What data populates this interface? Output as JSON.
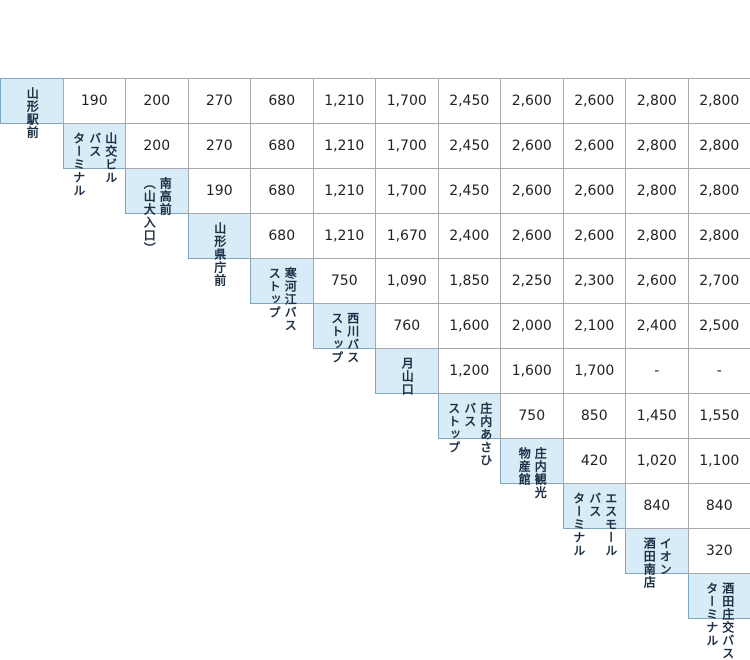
{
  "stops": [
    {
      "label": "山形駅前"
    },
    {
      "label": "山交ビル\nバス\nターミナル"
    },
    {
      "label": "南高前\n（山大入口）"
    },
    {
      "label": "山形県庁前"
    },
    {
      "label": "寒河江バス\nストップ"
    },
    {
      "label": "西川バス\nストップ"
    },
    {
      "label": "月山口"
    },
    {
      "label": "庄内あさひ\nバス\nストップ"
    },
    {
      "label": "庄内観光\n物産館"
    },
    {
      "label": "エスモール\nバス\nターミナル"
    },
    {
      "label": "イオン\n酒田南店"
    },
    {
      "label": "酒田庄交バス\nターミナル"
    }
  ],
  "fares": [
    [
      "190"
    ],
    [
      "200",
      "200"
    ],
    [
      "270",
      "270",
      "190"
    ],
    [
      "680",
      "680",
      "680",
      "680"
    ],
    [
      "1,210",
      "1,210",
      "1,210",
      "1,210",
      "750"
    ],
    [
      "1,700",
      "1,700",
      "1,700",
      "1,670",
      "1,090",
      "760"
    ],
    [
      "2,450",
      "2,450",
      "2,450",
      "2,400",
      "1,850",
      "1,600",
      "1,200"
    ],
    [
      "2,600",
      "2,600",
      "2,600",
      "2,600",
      "2,250",
      "2,000",
      "1,600",
      "750"
    ],
    [
      "2,600",
      "2,600",
      "2,600",
      "2,600",
      "2,300",
      "2,100",
      "1,700",
      "850",
      "420"
    ],
    [
      "2,800",
      "2,800",
      "2,800",
      "2,800",
      "2,600",
      "2,400",
      "-",
      "1,450",
      "1,020",
      "840"
    ],
    [
      "2,800",
      "2,800",
      "2,800",
      "2,800",
      "2,700",
      "2,500",
      "-",
      "1,550",
      "1,100",
      "840",
      "320"
    ]
  ]
}
